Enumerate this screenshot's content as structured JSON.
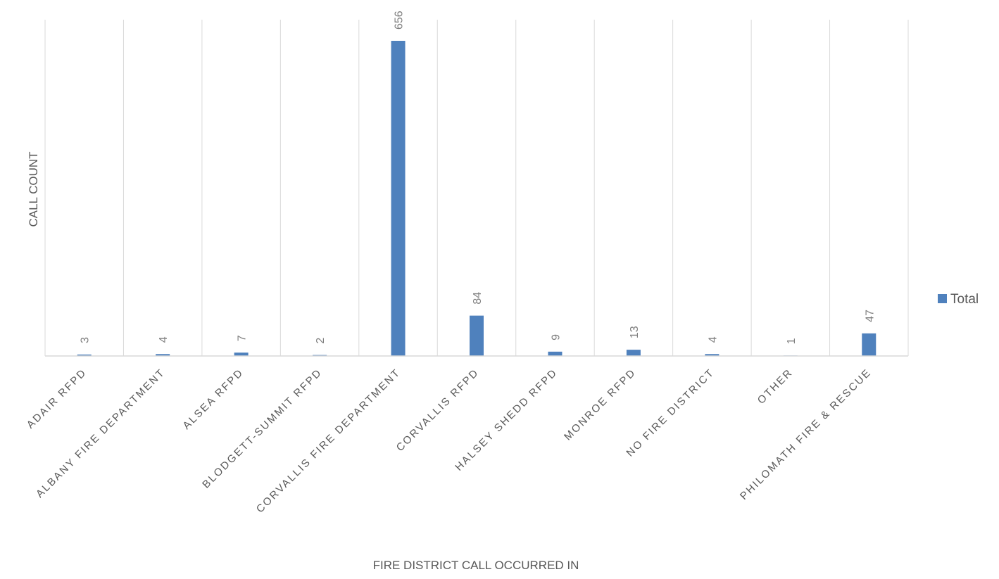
{
  "chart_data": {
    "type": "bar",
    "categories": [
      "ADAIR RFPD",
      "ALBANY FIRE DEPARTMENT",
      "ALSEA RFPD",
      "BLODGETT-SUMMIT RFPD",
      "CORVALLIS FIRE DEPARTMENT",
      "CORVALLIS RFPD",
      "HALSEY SHEDD RFPD",
      "MONROE RFPD",
      "NO FIRE DISTRICT",
      "OTHER",
      "PHILOMATH FIRE & RESCUE"
    ],
    "series": [
      {
        "name": "Total",
        "values": [
          3,
          4,
          7,
          2,
          656,
          84,
          9,
          13,
          4,
          1,
          47
        ]
      }
    ],
    "xlabel": "FIRE DISTRICT CALL OCCURRED IN",
    "ylabel": "CALL COUNT",
    "ylim": [
      0,
      700
    ],
    "grid": "vertical",
    "legend": "right",
    "colors": {
      "bar": "#4f81bd",
      "grid": "#d9d9d9",
      "axis": "#d9d9d9",
      "label": "#595959",
      "data_label": "#7f7f7f"
    }
  }
}
